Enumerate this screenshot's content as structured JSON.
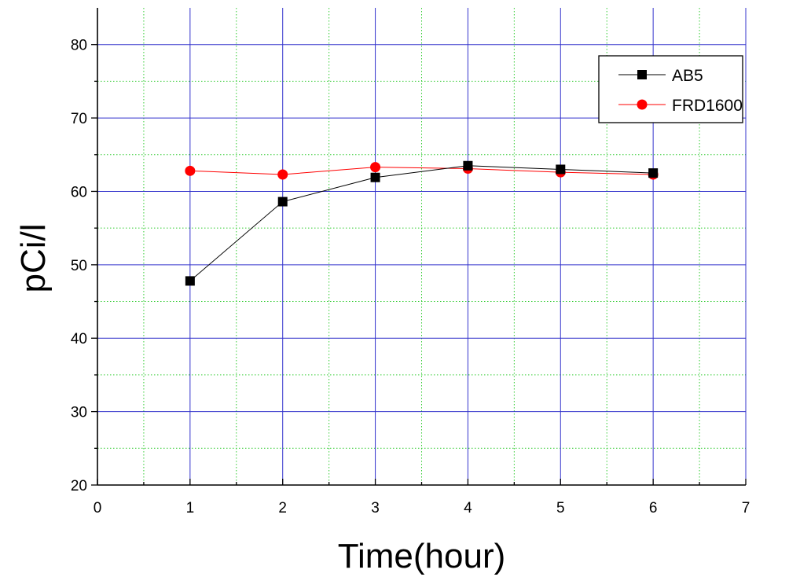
{
  "chart_data": {
    "type": "line",
    "title": "",
    "xlabel": "Time(hour)",
    "ylabel": "pCi/l",
    "xlim": [
      0,
      7
    ],
    "ylim": [
      20,
      85
    ],
    "x_ticks": [
      0,
      1,
      2,
      3,
      4,
      5,
      6,
      7
    ],
    "y_ticks": [
      20,
      30,
      40,
      50,
      60,
      70,
      80
    ],
    "x_tick_labels": [
      "0",
      "1",
      "2",
      "3",
      "4",
      "5",
      "6",
      "7"
    ],
    "y_tick_labels": [
      "20",
      "30",
      "40",
      "50",
      "60",
      "70",
      "80"
    ],
    "grid": true,
    "major_grid_color": "#3333cc",
    "minor_grid_color": "#33cc33",
    "legend_position": "top-right",
    "x": [
      1,
      2,
      3,
      4,
      5,
      6
    ],
    "series": [
      {
        "name": "AB5",
        "values": [
          47.8,
          58.6,
          61.9,
          63.5,
          63.0,
          62.5
        ],
        "color": "#000000",
        "marker": "square"
      },
      {
        "name": "FRD1600",
        "values": [
          62.8,
          62.3,
          63.3,
          63.1,
          62.6,
          62.3
        ],
        "color": "#ff0000",
        "marker": "circle"
      }
    ]
  }
}
